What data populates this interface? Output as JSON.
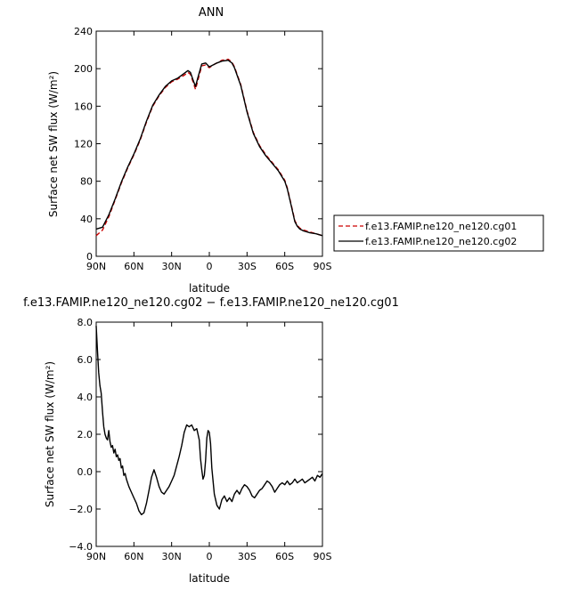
{
  "chart_data": [
    {
      "type": "line",
      "title": "ANN",
      "xlabel": "latitude",
      "ylabel": "Surface net SW flux (W/m²)",
      "xlim": [
        90,
        -90
      ],
      "ylim": [
        0,
        240
      ],
      "x_ticks": [
        {
          "value": 90,
          "label": "90N"
        },
        {
          "value": 60,
          "label": "60N"
        },
        {
          "value": 30,
          "label": "30N"
        },
        {
          "value": 0,
          "label": "0"
        },
        {
          "value": -30,
          "label": "30S"
        },
        {
          "value": -60,
          "label": "60S"
        },
        {
          "value": -90,
          "label": "90S"
        }
      ],
      "y_ticks": [
        {
          "value": 0,
          "label": "0"
        },
        {
          "value": 40,
          "label": "40"
        },
        {
          "value": 80,
          "label": "80"
        },
        {
          "value": 120,
          "label": "120"
        },
        {
          "value": 160,
          "label": "160"
        },
        {
          "value": 200,
          "label": "200"
        },
        {
          "value": 240,
          "label": "240"
        }
      ],
      "legend_position": "right",
      "series": [
        {
          "name": "f.e13.FAMIP.ne120_ne120.cg01",
          "color": "#cc0000",
          "dash": "dashed",
          "x": [
            90,
            85,
            80,
            75,
            70,
            65,
            60,
            55,
            50,
            45,
            40,
            35,
            30,
            25,
            20,
            17,
            15,
            13,
            11,
            9,
            6,
            3,
            0,
            -3,
            -6,
            -10,
            -15,
            -18,
            -20,
            -25,
            -30,
            -35,
            -40,
            -45,
            -50,
            -55,
            -60,
            -62,
            -65,
            -68,
            -70,
            -72,
            -75,
            -80,
            -85,
            -90
          ],
          "y": [
            22,
            28,
            42,
            60,
            78,
            94,
            108,
            124,
            143,
            160,
            171,
            180,
            186,
            189,
            193,
            196,
            194,
            186,
            178,
            188,
            203,
            204,
            201,
            204,
            206,
            209,
            210,
            207,
            202,
            183,
            155,
            132,
            118,
            108,
            100,
            92,
            81,
            73,
            56,
            38,
            33,
            30,
            28,
            26,
            24,
            22
          ]
        },
        {
          "name": "f.e13.FAMIP.ne120_ne120.cg02",
          "color": "#000000",
          "dash": "solid",
          "x": [
            90,
            85,
            80,
            75,
            70,
            65,
            60,
            55,
            50,
            45,
            40,
            35,
            30,
            25,
            20,
            17,
            15,
            13,
            11,
            9,
            6,
            3,
            0,
            -3,
            -6,
            -10,
            -15,
            -18,
            -20,
            -25,
            -30,
            -35,
            -40,
            -45,
            -50,
            -55,
            -60,
            -62,
            -65,
            -68,
            -70,
            -72,
            -75,
            -80,
            -85,
            -90
          ],
          "y": [
            29,
            31,
            44,
            61,
            79,
            95,
            109,
            125,
            144,
            161,
            172,
            181,
            187,
            190,
            195,
            198,
            196,
            188,
            181,
            191,
            205,
            206,
            202,
            204,
            206,
            208,
            209,
            206,
            201,
            182,
            154,
            131,
            117,
            107,
            99,
            91,
            80,
            72,
            55,
            37,
            32,
            29,
            27,
            25,
            24,
            22
          ]
        }
      ]
    },
    {
      "type": "line",
      "title": "f.e13.FAMIP.ne120_ne120.cg02 − f.e13.FAMIP.ne120_ne120.cg01",
      "xlabel": "latitude",
      "ylabel": "Surface net SW flux (W/m²)",
      "xlim": [
        90,
        -90
      ],
      "ylim": [
        -4,
        8
      ],
      "x_ticks": [
        {
          "value": 90,
          "label": "90N"
        },
        {
          "value": 60,
          "label": "60N"
        },
        {
          "value": 30,
          "label": "30N"
        },
        {
          "value": 0,
          "label": "0"
        },
        {
          "value": -30,
          "label": "30S"
        },
        {
          "value": -60,
          "label": "60S"
        },
        {
          "value": -90,
          "label": "90S"
        }
      ],
      "y_ticks": [
        {
          "value": -4,
          "label": "−4.0"
        },
        {
          "value": -2,
          "label": "−2.0"
        },
        {
          "value": 0,
          "label": "0.0"
        },
        {
          "value": 2,
          "label": "2.0"
        },
        {
          "value": 4,
          "label": "4.0"
        },
        {
          "value": 6,
          "label": "6.0"
        },
        {
          "value": 8,
          "label": "8.0"
        }
      ],
      "series": [
        {
          "color": "#000000",
          "dash": "solid",
          "x": [
            90,
            89,
            88,
            87,
            86,
            85,
            84,
            83,
            82,
            81,
            80,
            79,
            78,
            77,
            76,
            75,
            74,
            73,
            72,
            71,
            70,
            69,
            68,
            67,
            66,
            65,
            64,
            62,
            60,
            58,
            56,
            54,
            52,
            50,
            48,
            46,
            44,
            42,
            40,
            38,
            36,
            34,
            32,
            30,
            28,
            26,
            24,
            22,
            20,
            18,
            16,
            14,
            12,
            10,
            9,
            8,
            7,
            6,
            5,
            4,
            3,
            2,
            1,
            0,
            -1,
            -2,
            -3,
            -4,
            -6,
            -8,
            -10,
            -12,
            -14,
            -16,
            -18,
            -20,
            -22,
            -24,
            -26,
            -28,
            -30,
            -32,
            -34,
            -36,
            -38,
            -40,
            -42,
            -44,
            -46,
            -48,
            -50,
            -52,
            -54,
            -56,
            -58,
            -60,
            -62,
            -64,
            -66,
            -68,
            -70,
            -72,
            -74,
            -76,
            -78,
            -80,
            -82,
            -84,
            -86,
            -88,
            -90
          ],
          "y": [
            7.8,
            6.5,
            5.3,
            4.6,
            4.2,
            3.2,
            2.4,
            2.0,
            1.8,
            1.7,
            2.2,
            1.6,
            1.3,
            1.4,
            1.0,
            1.2,
            0.8,
            0.9,
            0.6,
            0.7,
            0.2,
            0.3,
            -0.2,
            -0.1,
            -0.4,
            -0.6,
            -0.8,
            -1.1,
            -1.4,
            -1.7,
            -2.1,
            -2.3,
            -2.2,
            -1.7,
            -1.0,
            -0.3,
            0.1,
            -0.3,
            -0.8,
            -1.1,
            -1.2,
            -1.0,
            -0.8,
            -0.5,
            -0.2,
            0.3,
            0.8,
            1.4,
            2.1,
            2.5,
            2.4,
            2.5,
            2.2,
            2.3,
            2.0,
            1.7,
            0.7,
            0.1,
            -0.4,
            -0.2,
            0.6,
            1.8,
            2.2,
            2.1,
            1.5,
            0.2,
            -0.5,
            -1.2,
            -1.8,
            -2.0,
            -1.5,
            -1.3,
            -1.6,
            -1.4,
            -1.6,
            -1.2,
            -1.0,
            -1.2,
            -0.9,
            -0.7,
            -0.8,
            -1.0,
            -1.3,
            -1.4,
            -1.2,
            -1.0,
            -0.9,
            -0.7,
            -0.5,
            -0.6,
            -0.8,
            -1.1,
            -0.9,
            -0.7,
            -0.6,
            -0.7,
            -0.5,
            -0.7,
            -0.6,
            -0.4,
            -0.6,
            -0.5,
            -0.4,
            -0.6,
            -0.5,
            -0.4,
            -0.3,
            -0.5,
            -0.2,
            -0.3,
            -0.1
          ]
        }
      ]
    }
  ]
}
